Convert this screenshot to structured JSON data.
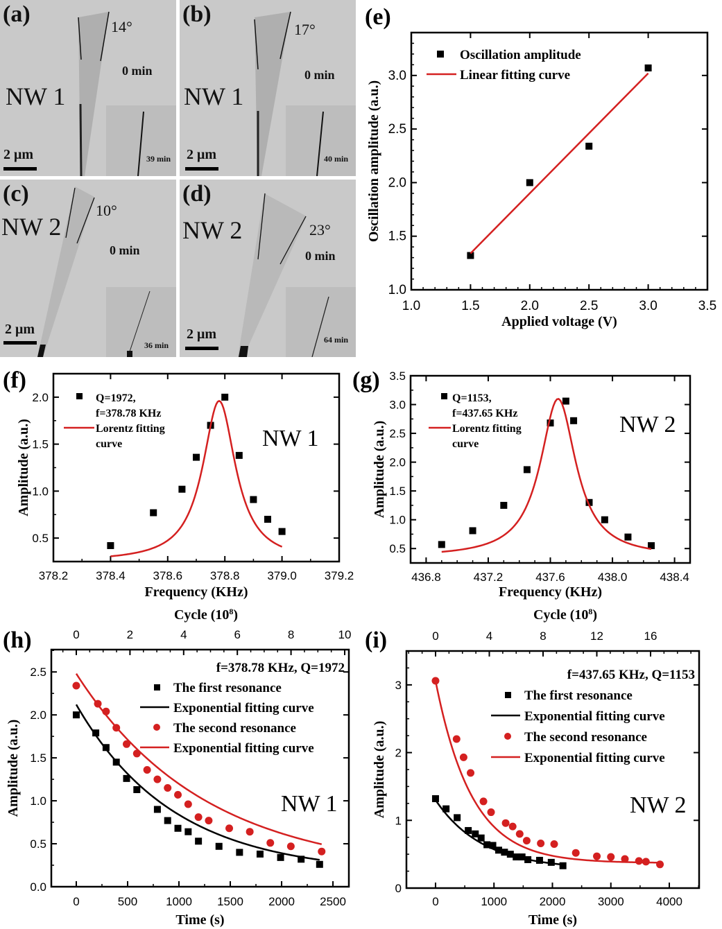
{
  "figure": {
    "panels_tem": [
      {
        "label": "(a)",
        "nanowire": "NW 1",
        "angle": "14°",
        "time_main": "0 min",
        "time_inset": "39 min",
        "scale_bar": "2 μm"
      },
      {
        "label": "(b)",
        "nanowire": "NW 1",
        "angle": "17°",
        "time_main": "0 min",
        "time_inset": "40 min",
        "scale_bar": "2 μm"
      },
      {
        "label": "(c)",
        "nanowire": "NW 2",
        "angle": "10°",
        "time_main": "0 min",
        "time_inset": "36 min",
        "scale_bar": "2 μm"
      },
      {
        "label": "(d)",
        "nanowire": "NW 2",
        "angle": "23°",
        "time_main": "0 min",
        "time_inset": "64 min",
        "scale_bar": "2 μm"
      }
    ],
    "colors": {
      "black": "#000000",
      "red": "#d42020",
      "tem_background": "#c9c9c9",
      "tem_inset": "#bdbdbd"
    }
  },
  "chart_data": [
    {
      "panel": "(e)",
      "type": "scatter",
      "title": "",
      "xlabel": "Applied voltage (V)",
      "ylabel": "Oscillation amplitude (a.u.)",
      "xlim": [
        1.0,
        3.5
      ],
      "ylim": [
        1.0,
        3.4
      ],
      "xticks": [
        "1.0",
        "1.5",
        "2.0",
        "2.5",
        "3.0",
        "3.5"
      ],
      "yticks": [
        "1.0",
        "1.5",
        "2.0",
        "2.5",
        "3.0"
      ],
      "legend": [
        "Oscillation amplitude",
        "Linear fitting curve"
      ],
      "legend_position": "top-left",
      "series": [
        {
          "name": "Oscillation amplitude",
          "kind": "scatter",
          "marker": "square",
          "color": "#000000",
          "x": [
            1.5,
            2.0,
            2.5,
            3.0
          ],
          "y": [
            1.32,
            2.0,
            2.34,
            3.07
          ]
        },
        {
          "name": "Linear fitting curve",
          "kind": "line",
          "color": "#d42020",
          "x": [
            1.5,
            3.0
          ],
          "y": [
            1.34,
            3.02
          ]
        }
      ]
    },
    {
      "panel": "(f)",
      "type": "scatter",
      "xlabel": "Frequency (KHz)",
      "ylabel": "Amplitude (a.u.)",
      "xlim": [
        378.2,
        379.2
      ],
      "ylim": [
        0.25,
        2.25
      ],
      "xticks": [
        "378.2",
        "378.4",
        "378.6",
        "378.8",
        "379.0",
        "379.2"
      ],
      "yticks": [
        "0.5",
        "1.0",
        "1.5",
        "2.0"
      ],
      "annotation": "NW 1",
      "legend": [
        "Q=1972,",
        "f=378.78 KHz",
        "Lorentz fitting",
        "curve"
      ],
      "legend_position": "top-left",
      "series": [
        {
          "name": "Q=1972, f=378.78 KHz",
          "kind": "scatter",
          "marker": "square",
          "color": "#000000",
          "x": [
            378.4,
            378.55,
            378.65,
            378.7,
            378.75,
            378.8,
            378.85,
            378.9,
            378.95,
            379.0
          ],
          "y": [
            0.42,
            0.77,
            1.02,
            1.36,
            1.7,
            2.0,
            1.38,
            0.91,
            0.7,
            0.57
          ]
        },
        {
          "name": "Lorentz fitting curve",
          "kind": "lorentz",
          "color": "#d42020",
          "center": 378.78,
          "peak": 1.96,
          "hwhm": 0.07,
          "baseline": 0.25,
          "x_range": [
            378.4,
            379.0
          ]
        }
      ]
    },
    {
      "panel": "(g)",
      "type": "scatter",
      "xlabel": "Frequency (KHz)",
      "ylabel": "Amplitude (a.u.)",
      "xlim": [
        436.7,
        438.5
      ],
      "ylim": [
        0.25,
        3.5
      ],
      "xticks": [
        "436.8",
        "437.2",
        "437.6",
        "438.0",
        "438.4"
      ],
      "yticks": [
        "0.5",
        "1.0",
        "1.5",
        "2.0",
        "2.5",
        "3.0",
        "3.5"
      ],
      "annotation": "NW 2",
      "legend": [
        "Q=1153,",
        "f=437.65 KHz",
        "Lorentz fitting",
        "curve"
      ],
      "legend_position": "top-left",
      "series": [
        {
          "name": "Q=1153, f=437.65 KHz",
          "kind": "scatter",
          "marker": "square",
          "color": "#000000",
          "x": [
            436.9,
            437.1,
            437.3,
            437.45,
            437.6,
            437.7,
            437.75,
            437.85,
            437.95,
            438.1,
            438.25
          ],
          "y": [
            0.57,
            0.81,
            1.25,
            1.87,
            2.68,
            3.06,
            2.72,
            1.3,
            1.0,
            0.7,
            0.55
          ]
        },
        {
          "name": "Lorentz fitting curve",
          "kind": "lorentz",
          "color": "#d42020",
          "center": 437.65,
          "peak": 3.1,
          "hwhm": 0.14,
          "baseline": 0.35,
          "x_range": [
            436.9,
            438.25
          ]
        }
      ]
    },
    {
      "panel": "(h)",
      "type": "scatter",
      "xlabel": "Time (s)",
      "x2label": "Cycle (10^8)",
      "ylabel": "Amplitude (a.u.)",
      "xlim": [
        -243,
        2655
      ],
      "ylim": [
        0.0,
        2.76
      ],
      "xticks": [
        "0",
        "500",
        "1000",
        "1500",
        "2000",
        "2500"
      ],
      "x2ticks": [
        "0",
        "2",
        "4",
        "6",
        "8",
        "10"
      ],
      "yticks": [
        "0.0",
        "0.5",
        "1.0",
        "1.5",
        "2.0",
        "2.5"
      ],
      "annotation": "NW 1",
      "legend_title": "f=378.78 KHz, Q=1972",
      "legend": [
        "The first resonance",
        "Exponential fitting curve",
        "The second resonance",
        "Exponential fitting curve"
      ],
      "legend_position": "top-right",
      "series": [
        {
          "name": "The first resonance",
          "kind": "scatter",
          "marker": "square",
          "color": "#000000",
          "x": [
            0,
            190,
            290,
            390,
            490,
            590,
            790,
            890,
            990,
            1090,
            1190,
            1390,
            1590,
            1790,
            1990,
            2190,
            2370
          ],
          "y": [
            2.0,
            1.79,
            1.62,
            1.45,
            1.26,
            1.13,
            0.9,
            0.77,
            0.68,
            0.64,
            0.53,
            0.47,
            0.4,
            0.38,
            0.34,
            0.32,
            0.26
          ]
        },
        {
          "name": "Exponential fitting curve",
          "kind": "exp",
          "color": "#000000",
          "y0": 0.15,
          "A": 1.97,
          "tau": 950,
          "x_range": [
            0,
            2370
          ]
        },
        {
          "name": "The second resonance",
          "kind": "scatter",
          "marker": "circle",
          "color": "#d42020",
          "x": [
            0,
            210,
            290,
            390,
            490,
            590,
            690,
            790,
            890,
            990,
            1090,
            1190,
            1290,
            1490,
            1690,
            1890,
            2090,
            2390
          ],
          "y": [
            2.34,
            2.13,
            2.04,
            1.85,
            1.66,
            1.55,
            1.36,
            1.25,
            1.15,
            1.07,
            0.96,
            0.81,
            0.77,
            0.68,
            0.64,
            0.51,
            0.47,
            0.41
          ]
        },
        {
          "name": "Exponential fitting curve",
          "kind": "exp",
          "color": "#d42020",
          "y0": 0.15,
          "A": 2.33,
          "tau": 1250,
          "x_range": [
            0,
            2390
          ]
        }
      ]
    },
    {
      "panel": "(i)",
      "type": "scatter",
      "xlabel": "Time (s)",
      "x2label": "Cycle (10^8)",
      "ylabel": "Amplitude (a.u.)",
      "xlim": [
        -498,
        4510
      ],
      "ylim": [
        0,
        3.5
      ],
      "xticks": [
        "0",
        "1000",
        "2000",
        "3000",
        "4000"
      ],
      "x2ticks": [
        "0",
        "4",
        "8",
        "12",
        "16"
      ],
      "yticks": [
        "0",
        "1",
        "2",
        "3"
      ],
      "annotation": "NW 2",
      "legend_title": "f=437.65 KHz, Q=1153",
      "legend": [
        "The first resonance",
        "Exponential fitting curve",
        "The second resonance",
        "Exponential fitting curve"
      ],
      "legend_position": "top-right",
      "series": [
        {
          "name": "The first resonance",
          "kind": "scatter",
          "marker": "square",
          "color": "#000000",
          "x": [
            0,
            180,
            370,
            560,
            680,
            780,
            880,
            980,
            1080,
            1180,
            1280,
            1380,
            1480,
            1580,
            1780,
            1980,
            2180
          ],
          "y": [
            1.32,
            1.17,
            1.04,
            0.85,
            0.8,
            0.74,
            0.64,
            0.63,
            0.56,
            0.53,
            0.5,
            0.46,
            0.46,
            0.42,
            0.41,
            0.38,
            0.33
          ]
        },
        {
          "name": "Exponential fitting curve",
          "kind": "exp",
          "color": "#000000",
          "y0": 0.28,
          "A": 1.02,
          "tau": 800,
          "x_range": [
            0,
            2180
          ]
        },
        {
          "name": "The second resonance",
          "kind": "scatter",
          "marker": "circle",
          "color": "#d42020",
          "x": [
            0,
            360,
            480,
            600,
            820,
            950,
            1200,
            1320,
            1440,
            1560,
            1800,
            2030,
            2400,
            2760,
            3000,
            3240,
            3480,
            3600,
            3840
          ],
          "y": [
            3.06,
            2.2,
            1.93,
            1.7,
            1.28,
            1.12,
            0.96,
            0.91,
            0.8,
            0.7,
            0.66,
            0.65,
            0.52,
            0.47,
            0.46,
            0.43,
            0.4,
            0.39,
            0.35
          ]
        },
        {
          "name": "Exponential fitting curve",
          "kind": "exp",
          "color": "#d42020",
          "y0": 0.37,
          "A": 2.69,
          "tau": 620,
          "x_range": [
            0,
            3840
          ]
        }
      ]
    }
  ]
}
